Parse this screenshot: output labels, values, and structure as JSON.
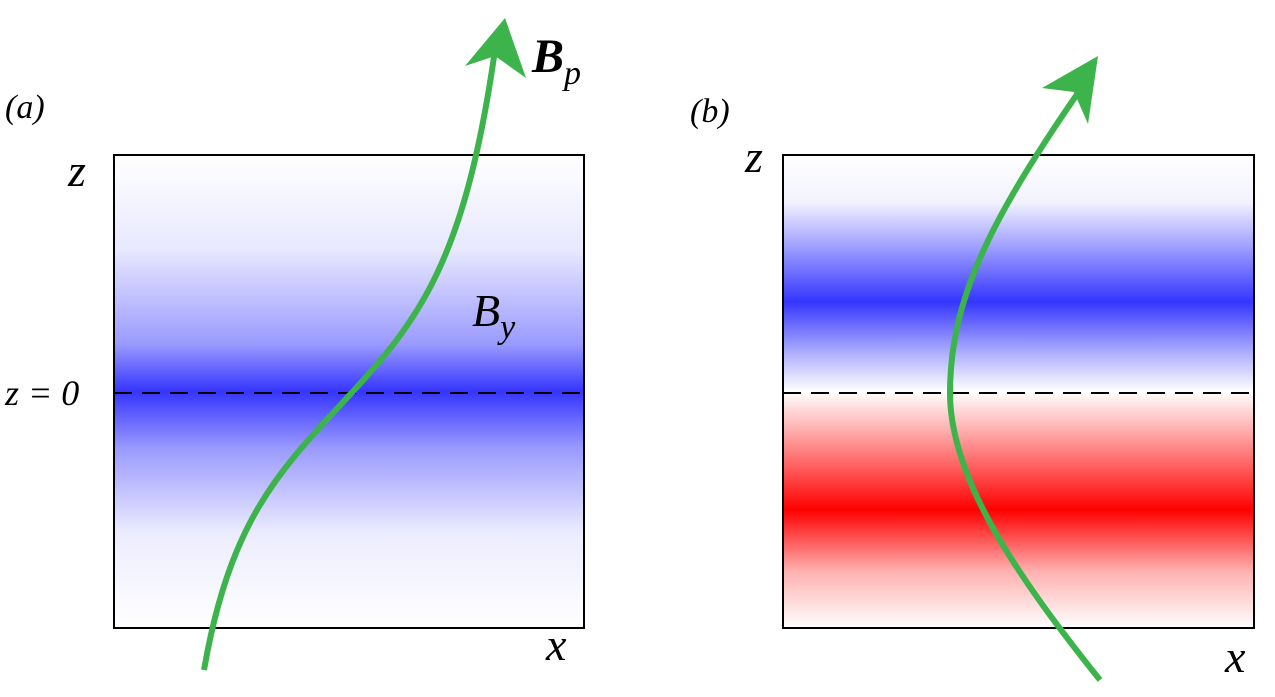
{
  "panels": [
    {
      "label": "(a)",
      "z_label": "z",
      "x_label": "x",
      "baseline_label": "z = 0",
      "field_label": {
        "main": "B",
        "sub": "y"
      },
      "curve_label": {
        "main": "B",
        "sub": "p"
      }
    },
    {
      "label": "(b)",
      "z_label": "z",
      "x_label": "x"
    }
  ]
}
